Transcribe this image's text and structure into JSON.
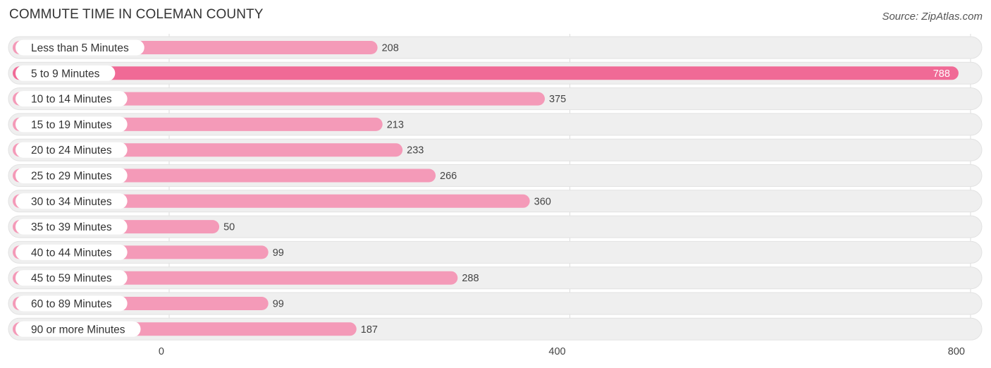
{
  "header": {
    "title": "COMMUTE TIME IN COLEMAN COUNTY",
    "source": "Source: ZipAtlas.com"
  },
  "colors": {
    "bar": "#f49ab8",
    "bar_highlight": "#f06a96",
    "track": "#efefef",
    "pill": "#ffffff"
  },
  "chart_data": {
    "type": "bar",
    "orientation": "horizontal",
    "title": "COMMUTE TIME IN COLEMAN COUNTY",
    "categories": [
      "Less than 5 Minutes",
      "5 to 9 Minutes",
      "10 to 14 Minutes",
      "15 to 19 Minutes",
      "20 to 24 Minutes",
      "25 to 29 Minutes",
      "30 to 34 Minutes",
      "35 to 39 Minutes",
      "40 to 44 Minutes",
      "45 to 59 Minutes",
      "60 to 89 Minutes",
      "90 or more Minutes"
    ],
    "values": [
      208,
      788,
      375,
      213,
      233,
      266,
      360,
      50,
      99,
      288,
      99,
      187
    ],
    "xlim": [
      0,
      800
    ],
    "xticks": [
      0,
      400,
      800
    ],
    "highlight_index": 1,
    "grid": true,
    "xlabel": "",
    "ylabel": ""
  }
}
